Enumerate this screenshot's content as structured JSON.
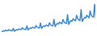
{
  "chart_data": {
    "type": "line",
    "color": "#3a8ad9",
    "tick_labels": false,
    "grid": false,
    "ylim": [
      0,
      100
    ],
    "values": [
      8,
      10,
      9,
      12,
      11,
      10,
      14,
      12,
      11,
      10,
      18,
      9,
      12,
      14,
      13,
      16,
      15,
      14,
      20,
      16,
      15,
      14,
      26,
      13,
      17,
      19,
      18,
      22,
      20,
      19,
      27,
      22,
      20,
      19,
      35,
      18,
      23,
      26,
      24,
      29,
      27,
      25,
      36,
      29,
      27,
      26,
      47,
      24,
      30,
      34,
      32,
      38,
      35,
      33,
      47,
      38,
      35,
      34,
      62,
      31,
      38,
      43,
      41,
      49,
      45,
      42,
      60,
      49,
      45,
      43,
      78,
      40,
      47,
      53,
      51,
      60,
      56,
      52,
      74,
      60,
      56,
      54,
      95,
      50
    ]
  }
}
